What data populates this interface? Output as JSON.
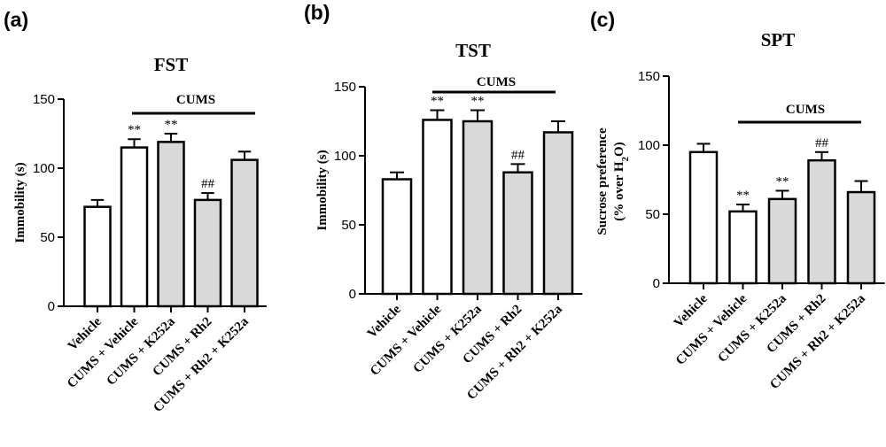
{
  "chart_data": [
    {
      "type": "bar",
      "panel_label": "(a)",
      "title": "FST",
      "ylabel": "Immobility (s)",
      "ylim": [
        0,
        150
      ],
      "yticks": [
        0,
        50,
        100,
        150
      ],
      "categories": [
        "Vehicle",
        "CUMS + Vehicle",
        "CUMS + K252a",
        "CUMS + Rh2",
        "CUMS + Rh2 + K252a"
      ],
      "values": [
        72,
        115,
        119,
        77,
        106
      ],
      "errors": [
        5,
        6,
        6,
        5,
        6
      ],
      "fills": [
        "#ffffff",
        "#ffffff",
        "#d9d9d9",
        "#d9d9d9",
        "#d9d9d9"
      ],
      "annotations": [
        "",
        "**",
        "**",
        "##",
        ""
      ],
      "group_label": "CUMS",
      "group_span": [
        1,
        4
      ]
    },
    {
      "type": "bar",
      "panel_label": "(b)",
      "title": "TST",
      "ylabel": "Immobility (s)",
      "ylim": [
        0,
        150
      ],
      "yticks": [
        0,
        50,
        100,
        150
      ],
      "categories": [
        "Vehicle",
        "CUMS + Vehicle",
        "CUMS + K252a",
        "CUMS + Rh2",
        "CUMS + Rh2 + K252a"
      ],
      "values": [
        83,
        126,
        125,
        88,
        117
      ],
      "errors": [
        5,
        7,
        8,
        6,
        8
      ],
      "fills": [
        "#ffffff",
        "#ffffff",
        "#d9d9d9",
        "#d9d9d9",
        "#d9d9d9"
      ],
      "annotations": [
        "",
        "**",
        "**",
        "##",
        ""
      ],
      "group_label": "CUMS",
      "group_span": [
        1,
        4
      ]
    },
    {
      "type": "bar",
      "panel_label": "(c)",
      "title": "SPT",
      "ylabel_line1": "Sucrose preference",
      "ylabel_line2": "(% over H",
      "ylabel_sub": "2",
      "ylabel_end": "O)",
      "ylim": [
        0,
        150
      ],
      "yticks": [
        0,
        50,
        100,
        150
      ],
      "categories": [
        "Vehicle",
        "CUMS + Vehicle",
        "CUMS + K252a",
        "CUMS + Rh2",
        "CUMS + Rh2 + K252a"
      ],
      "values": [
        95,
        52,
        61,
        89,
        66
      ],
      "errors": [
        6,
        5,
        6,
        6,
        8
      ],
      "fills": [
        "#ffffff",
        "#ffffff",
        "#d9d9d9",
        "#d9d9d9",
        "#d9d9d9"
      ],
      "annotations": [
        "",
        "**",
        "**",
        "##",
        ""
      ],
      "group_label": "CUMS",
      "group_span": [
        1,
        4
      ]
    }
  ]
}
